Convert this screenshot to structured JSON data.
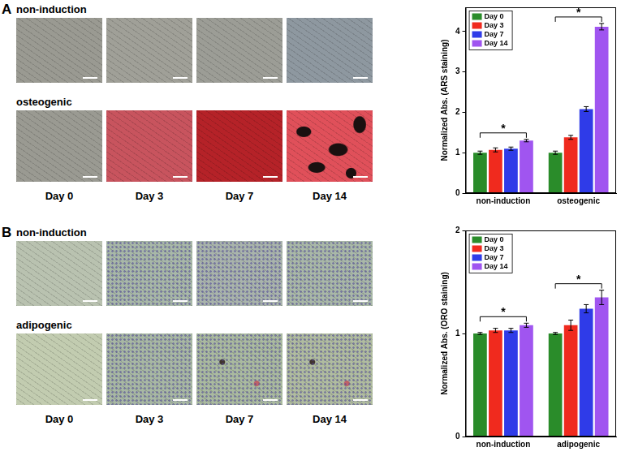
{
  "panels": [
    {
      "label": "A",
      "image_rows": [
        "non-induction",
        "osteogenic"
      ],
      "image_columns": [
        "Day 0",
        "Day 3",
        "Day 7",
        "Day 14"
      ]
    },
    {
      "label": "B",
      "image_rows": [
        "non-induction",
        "adipogenic"
      ],
      "image_columns": [
        "Day 0",
        "Day 3",
        "Day 7",
        "Day 14"
      ]
    }
  ],
  "chart_data": [
    {
      "type": "bar",
      "y_label": "Normalized Abs. (ARS staining)",
      "categories": [
        "non-induction",
        "osteogenic"
      ],
      "series": [
        {
          "name": "Day 0",
          "color": "#2a8c2a",
          "values": [
            1.0,
            1.0
          ],
          "errors": [
            0.04,
            0.04
          ]
        },
        {
          "name": "Day 3",
          "color": "#f02a1e",
          "values": [
            1.07,
            1.38
          ],
          "errors": [
            0.05,
            0.05
          ]
        },
        {
          "name": "Day 7",
          "color": "#2f3be8",
          "values": [
            1.1,
            2.08
          ],
          "errors": [
            0.04,
            0.06
          ]
        },
        {
          "name": "Day 14",
          "color": "#a055f0",
          "values": [
            1.3,
            4.12
          ],
          "errors": [
            0.03,
            0.08
          ]
        }
      ],
      "ylim": [
        0,
        4.6
      ],
      "yticks": [
        0,
        1,
        2,
        3,
        4
      ],
      "grid": false,
      "legend": "upper left",
      "annotations": [
        {
          "text": "*",
          "category": "non-induction",
          "from": "Day 0",
          "to": "Day 14"
        },
        {
          "text": "*",
          "category": "osteogenic",
          "from": "Day 0",
          "to": "Day 14"
        }
      ]
    },
    {
      "type": "bar",
      "y_label": "Normalized Abs. (ORO staining)",
      "categories": [
        "non-induction",
        "adipogenic"
      ],
      "series": [
        {
          "name": "Day 0",
          "color": "#2a8c2a",
          "values": [
            1.0,
            1.0
          ],
          "errors": [
            0.01,
            0.01
          ]
        },
        {
          "name": "Day 3",
          "color": "#f02a1e",
          "values": [
            1.03,
            1.08
          ],
          "errors": [
            0.02,
            0.05
          ]
        },
        {
          "name": "Day 7",
          "color": "#2f3be8",
          "values": [
            1.03,
            1.24
          ],
          "errors": [
            0.02,
            0.04
          ]
        },
        {
          "name": "Day 14",
          "color": "#a055f0",
          "values": [
            1.08,
            1.35
          ],
          "errors": [
            0.02,
            0.07
          ]
        }
      ],
      "ylim": [
        0,
        2
      ],
      "yticks": [
        0,
        1,
        2
      ],
      "grid": false,
      "legend": "upper left",
      "annotations": [
        {
          "text": "*",
          "category": "non-induction",
          "from": "Day 0",
          "to": "Day 14"
        },
        {
          "text": "*",
          "category": "adipogenic",
          "from": "Day 0",
          "to": "Day 14"
        }
      ]
    }
  ]
}
